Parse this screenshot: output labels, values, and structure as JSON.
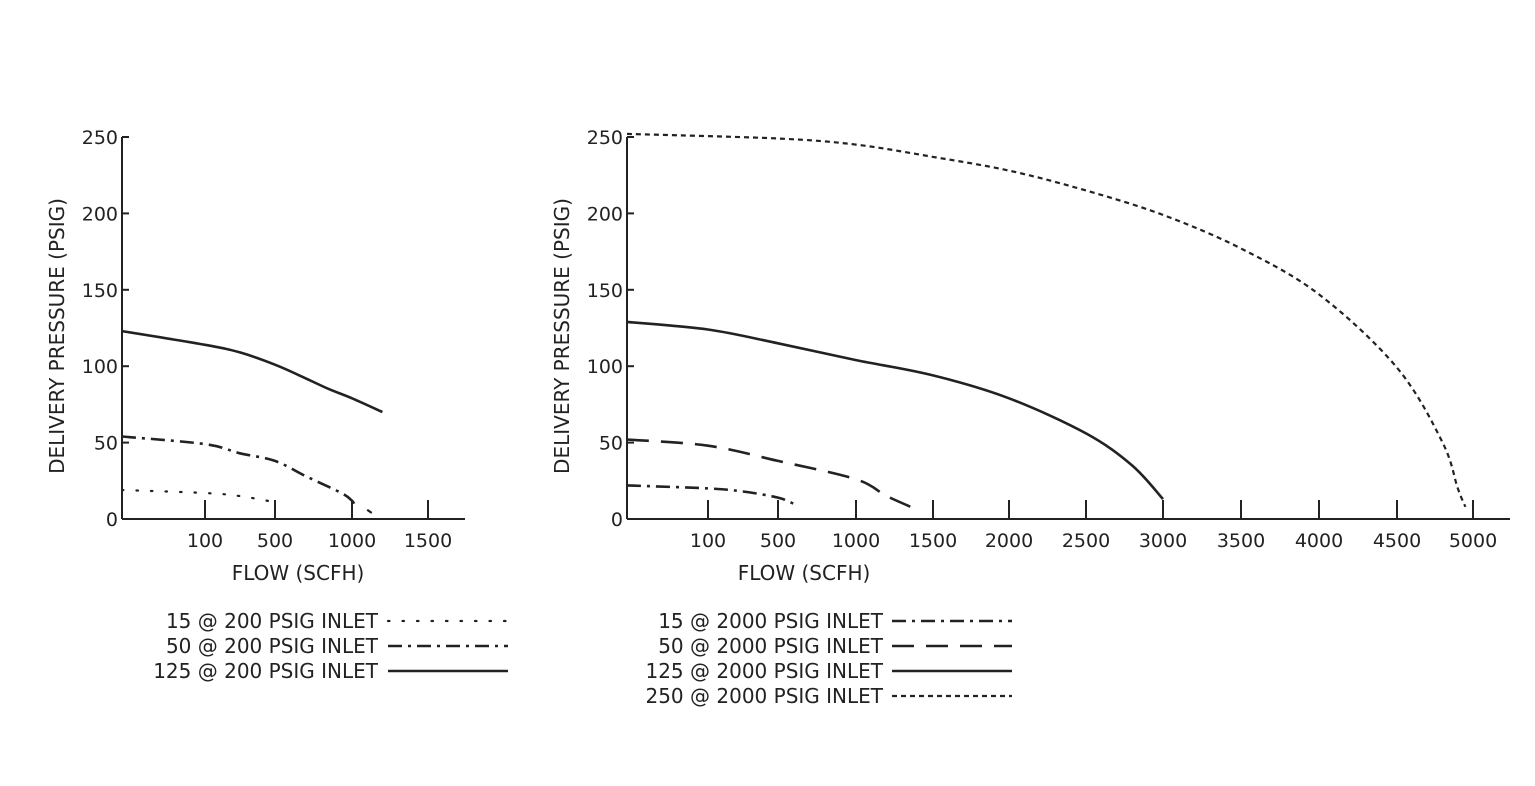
{
  "chart_data": [
    {
      "type": "line",
      "xlabel": "FLOW (SCFH)",
      "ylabel": "DELIVERY PRESSURE (PSIG)",
      "ylim": [
        0,
        250
      ],
      "yticks": [
        "0",
        "50",
        "100",
        "150",
        "200",
        "250"
      ],
      "xticks": [
        "100",
        "500",
        "1000",
        "1500"
      ],
      "x_axis_note": "non-uniform axis: ticks 100, 500, 1000, 1500",
      "grid": false,
      "legend_position": "bottom",
      "series": [
        {
          "name": "15 @ 200 PSIG INLET",
          "style": "dotted",
          "points": [
            [
              0,
              19
            ],
            [
              100,
              17
            ],
            [
              300,
              15
            ],
            [
              500,
              11
            ]
          ]
        },
        {
          "name": "50 @ 200 PSIG INLET",
          "style": "dash-dot",
          "points": [
            [
              0,
              54
            ],
            [
              100,
              49
            ],
            [
              300,
              43
            ],
            [
              500,
              38
            ],
            [
              700,
              28
            ],
            [
              850,
              21
            ],
            [
              950,
              16
            ],
            [
              1000,
              12
            ],
            [
              1020,
              9
            ]
          ]
        },
        {
          "name": "125 @ 200 PSIG INLET",
          "style": "solid",
          "points": [
            [
              0,
              123
            ],
            [
              100,
              114
            ],
            [
              300,
              109
            ],
            [
              500,
              101
            ],
            [
              700,
              92
            ],
            [
              850,
              85
            ],
            [
              1000,
              79
            ],
            [
              1200,
              70
            ]
          ]
        }
      ],
      "extra_marks": [
        {
          "style": "dash-dot",
          "points": [
            [
              1100,
              6
            ],
            [
              1130,
              4
            ]
          ]
        }
      ]
    },
    {
      "type": "line",
      "xlabel": "FLOW (SCFH)",
      "ylabel": "DELIVERY PRESSURE (PSIG)",
      "ylim": [
        0,
        250
      ],
      "yticks": [
        "0",
        "50",
        "100",
        "150",
        "200",
        "250"
      ],
      "xticks": [
        "100",
        "500",
        "1000",
        "1500",
        "2000",
        "2500",
        "3000",
        "3500",
        "4000",
        "4500",
        "5000"
      ],
      "x_axis_note": "non-uniform axis: ticks 100, 500, 1000 ... 5000",
      "grid": false,
      "legend_position": "bottom",
      "series": [
        {
          "name": "15 @ 2000 PSIG INLET",
          "style": "dash-dot",
          "points": [
            [
              0,
              22
            ],
            [
              100,
              20
            ],
            [
              300,
              18
            ],
            [
              500,
              14
            ],
            [
              600,
              10
            ]
          ]
        },
        {
          "name": "50 @ 2000 PSIG INLET",
          "style": "dashed",
          "points": [
            [
              0,
              52
            ],
            [
              100,
              48
            ],
            [
              500,
              38
            ],
            [
              1000,
              26
            ],
            [
              1200,
              15
            ],
            [
              1400,
              6
            ]
          ]
        },
        {
          "name": "125 @ 2000 PSIG INLET",
          "style": "solid",
          "points": [
            [
              0,
              129
            ],
            [
              100,
              124
            ],
            [
              500,
              115
            ],
            [
              1000,
              104
            ],
            [
              1500,
              94
            ],
            [
              2000,
              79
            ],
            [
              2500,
              56
            ],
            [
              2800,
              35
            ],
            [
              3000,
              13
            ]
          ]
        },
        {
          "name": "250 @ 2000 PSIG INLET",
          "style": "short-dashed",
          "points": [
            [
              0,
              252
            ],
            [
              500,
              249
            ],
            [
              1000,
              245
            ],
            [
              1500,
              237
            ],
            [
              2000,
              228
            ],
            [
              2500,
              215
            ],
            [
              3000,
              199
            ],
            [
              3500,
              177
            ],
            [
              4000,
              147
            ],
            [
              4500,
              99
            ],
            [
              4800,
              50
            ],
            [
              4900,
              20
            ],
            [
              4950,
              8
            ]
          ]
        }
      ]
    }
  ]
}
